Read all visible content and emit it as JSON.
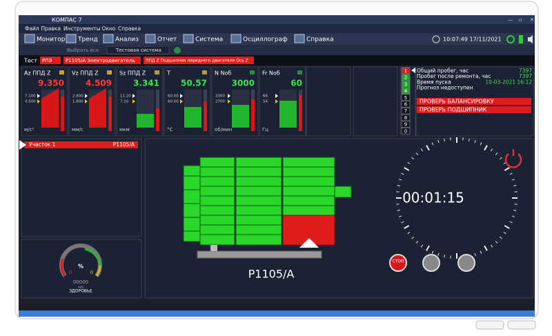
{
  "window": {
    "title": "КОМПАС 7"
  },
  "menu": [
    "Файл",
    "Правка",
    "Инструменты",
    "Окно",
    "Справка"
  ],
  "toolbar": [
    "Монитор",
    "Тренд",
    "Анализ",
    "Отчет",
    "Система",
    "Осциллограф",
    "Справка"
  ],
  "datetime": "10:07:49 17/11/2021",
  "subtoolbar": {
    "select_all": "Выбрать все",
    "system": "Тестовая система"
  },
  "test_bar": {
    "label": "Тест",
    "tags": [
      "РПЭ",
      "P1105/A Электродвигатель",
      "ППД Z Подшипник переднего двигателя Ось Z"
    ]
  },
  "gauges": [
    {
      "name": "Az ППД Z",
      "value": "9.350",
      "unit": "м/с²",
      "levels": [
        "7.100",
        "4.500"
      ]
    },
    {
      "name": "Vz ППД Z",
      "value": "4.509",
      "unit": "мм/с",
      "levels": [
        "2.800",
        "1.800"
      ]
    },
    {
      "name": "Sz ППД Z",
      "value": "3.341",
      "unit": "мкм",
      "levels": [
        "11.20",
        "7.10"
      ]
    },
    {
      "name": "T",
      "value": "50.57",
      "unit": "°C",
      "levels": [
        "60.00",
        "60.00"
      ]
    },
    {
      "name": "N Nоб",
      "value": "3000",
      "unit": "об/мин",
      "levels": [
        "3300",
        "2700"
      ]
    },
    {
      "name": "Fr Nоб",
      "value": "60",
      "unit": "Гц",
      "levels": [
        "66",
        "54"
      ]
    }
  ],
  "indicator_numbers": [
    "1",
    "2",
    "3",
    "4",
    "5",
    "6",
    "7",
    "8",
    "9",
    "0"
  ],
  "info": [
    {
      "label": "Общий пробег, час",
      "value": "7397"
    },
    {
      "label": "Пробег после ремонта, час",
      "value": "7397"
    },
    {
      "label": "Время пуска",
      "value": "10-03-2021 16:12"
    },
    {
      "label": "Прогноз недоступен"
    }
  ],
  "alerts": [
    "ПРОВЕРЬ БАЛАНСИРОВКУ",
    "ПРОВЕРЬ ПОДШИПНИК"
  ],
  "section": {
    "name": "Участок 1",
    "unit": "P1105/A"
  },
  "health": {
    "percent": "%",
    "left": "0",
    "right": "0",
    "hours": "00000",
    "hours_unit": "час",
    "label": "ЗДОРОВЬЕ"
  },
  "machine": {
    "label": "P1105/A"
  },
  "timer": "00:01:15",
  "stop_button": "СТОП"
}
